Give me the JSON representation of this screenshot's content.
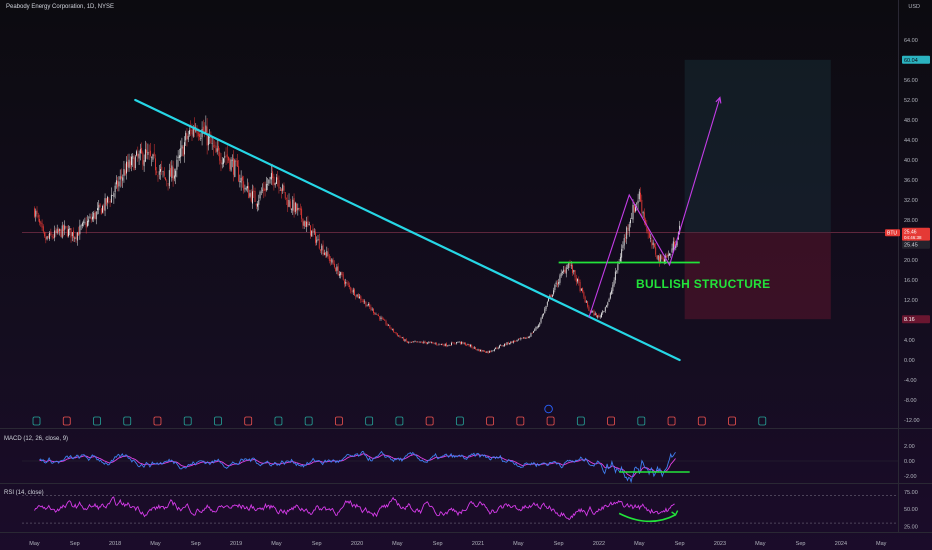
{
  "header": {
    "title": "Peabody Energy Corporation, 1D, NYSE",
    "currency": "USD"
  },
  "panes": {
    "macd_label": "MACD (12, 26, close, 9)",
    "rsi_label": "RSI (14, close)"
  },
  "annotation": "BULLISH STRUCTURE",
  "price_tags": {
    "target": "60.04",
    "ticker": "BTU",
    "last": "25.46",
    "countdown": "04:46:38",
    "close": "25.45",
    "stop": "8.16"
  },
  "colors": {
    "background": "#0d0b13",
    "candle_up": "#e8e8e8",
    "candle_down": "#e53935",
    "trendline": "#26d7e6",
    "support": "#22e33a",
    "projection": "#c33ce6",
    "rsi_line": "#d53be8",
    "macd_line": "#3f7ff0",
    "signal_line": "#e040e0",
    "earnings_up": "#26a69a",
    "earnings_down": "#ef5350",
    "dividend": "#2962ff"
  },
  "chart_data": [
    {
      "type": "candlestick",
      "title": "Peabody Energy Corporation, 1D, NYSE",
      "ylim": [
        -12,
        64
      ],
      "yticks": [
        "-12.00",
        "-8.00",
        "-4.00",
        "0.00",
        "4.00",
        "8.00",
        "12.00",
        "16.00",
        "20.00",
        "24.00",
        "28.00",
        "32.00",
        "36.00",
        "40.00",
        "44.00",
        "48.00",
        "52.00",
        "56.00",
        "64.00"
      ],
      "xticks": [
        "May",
        "Sep",
        "2018",
        "May",
        "Sep",
        "2019",
        "May",
        "Sep",
        "2020",
        "May",
        "Sep",
        "2021",
        "May",
        "Sep",
        "2022",
        "May",
        "Sep",
        "2023",
        "May",
        "Sep",
        "2024",
        "May"
      ],
      "x_start": "2017-05",
      "series": [
        {
          "values": [
            30,
            24,
            25,
            26,
            25,
            27,
            29,
            31,
            34,
            38,
            40,
            41,
            39,
            36,
            38,
            44,
            47,
            45,
            41,
            41,
            38,
            34,
            32,
            35,
            37,
            32,
            30,
            27,
            24,
            21,
            18,
            15,
            13,
            11,
            9,
            7,
            5,
            3.5,
            3.5,
            3.5,
            3.2,
            3,
            3.6,
            3,
            2,
            1.6,
            2.6,
            3.4,
            4,
            4.6,
            7,
            12,
            16,
            19.5,
            15,
            10,
            8.5,
            12,
            20,
            28,
            33,
            24,
            20,
            21,
            26
          ]
        }
      ],
      "drawings": {
        "trendline": {
          "from": [
            "2018-03",
            52
          ],
          "to": [
            "2022-09",
            0
          ]
        },
        "support": {
          "from": [
            "2021-09",
            19.5
          ],
          "to": [
            "2022-11",
            19.5
          ],
          "label": "BULLISH STRUCTURE"
        },
        "projection": [
          [
            "2021-12",
            8.5
          ],
          [
            "2022-04",
            33
          ],
          [
            "2022-08",
            19
          ],
          [
            "2023-01",
            52.5
          ]
        ],
        "position": {
          "entry": 25.46,
          "target": 60.04,
          "stop": 8.16
        }
      }
    },
    {
      "type": "line",
      "title": "MACD (12, 26, close, 9)",
      "ylim": [
        -2.5,
        2.8
      ],
      "yticks": [
        "2.00",
        "0.00",
        "-2.00"
      ]
    },
    {
      "type": "line",
      "title": "RSI (14, close)",
      "ylim": [
        20,
        85
      ],
      "yticks": [
        "75.00",
        "50.00",
        "25.00"
      ],
      "levels": [
        70,
        30
      ]
    }
  ]
}
